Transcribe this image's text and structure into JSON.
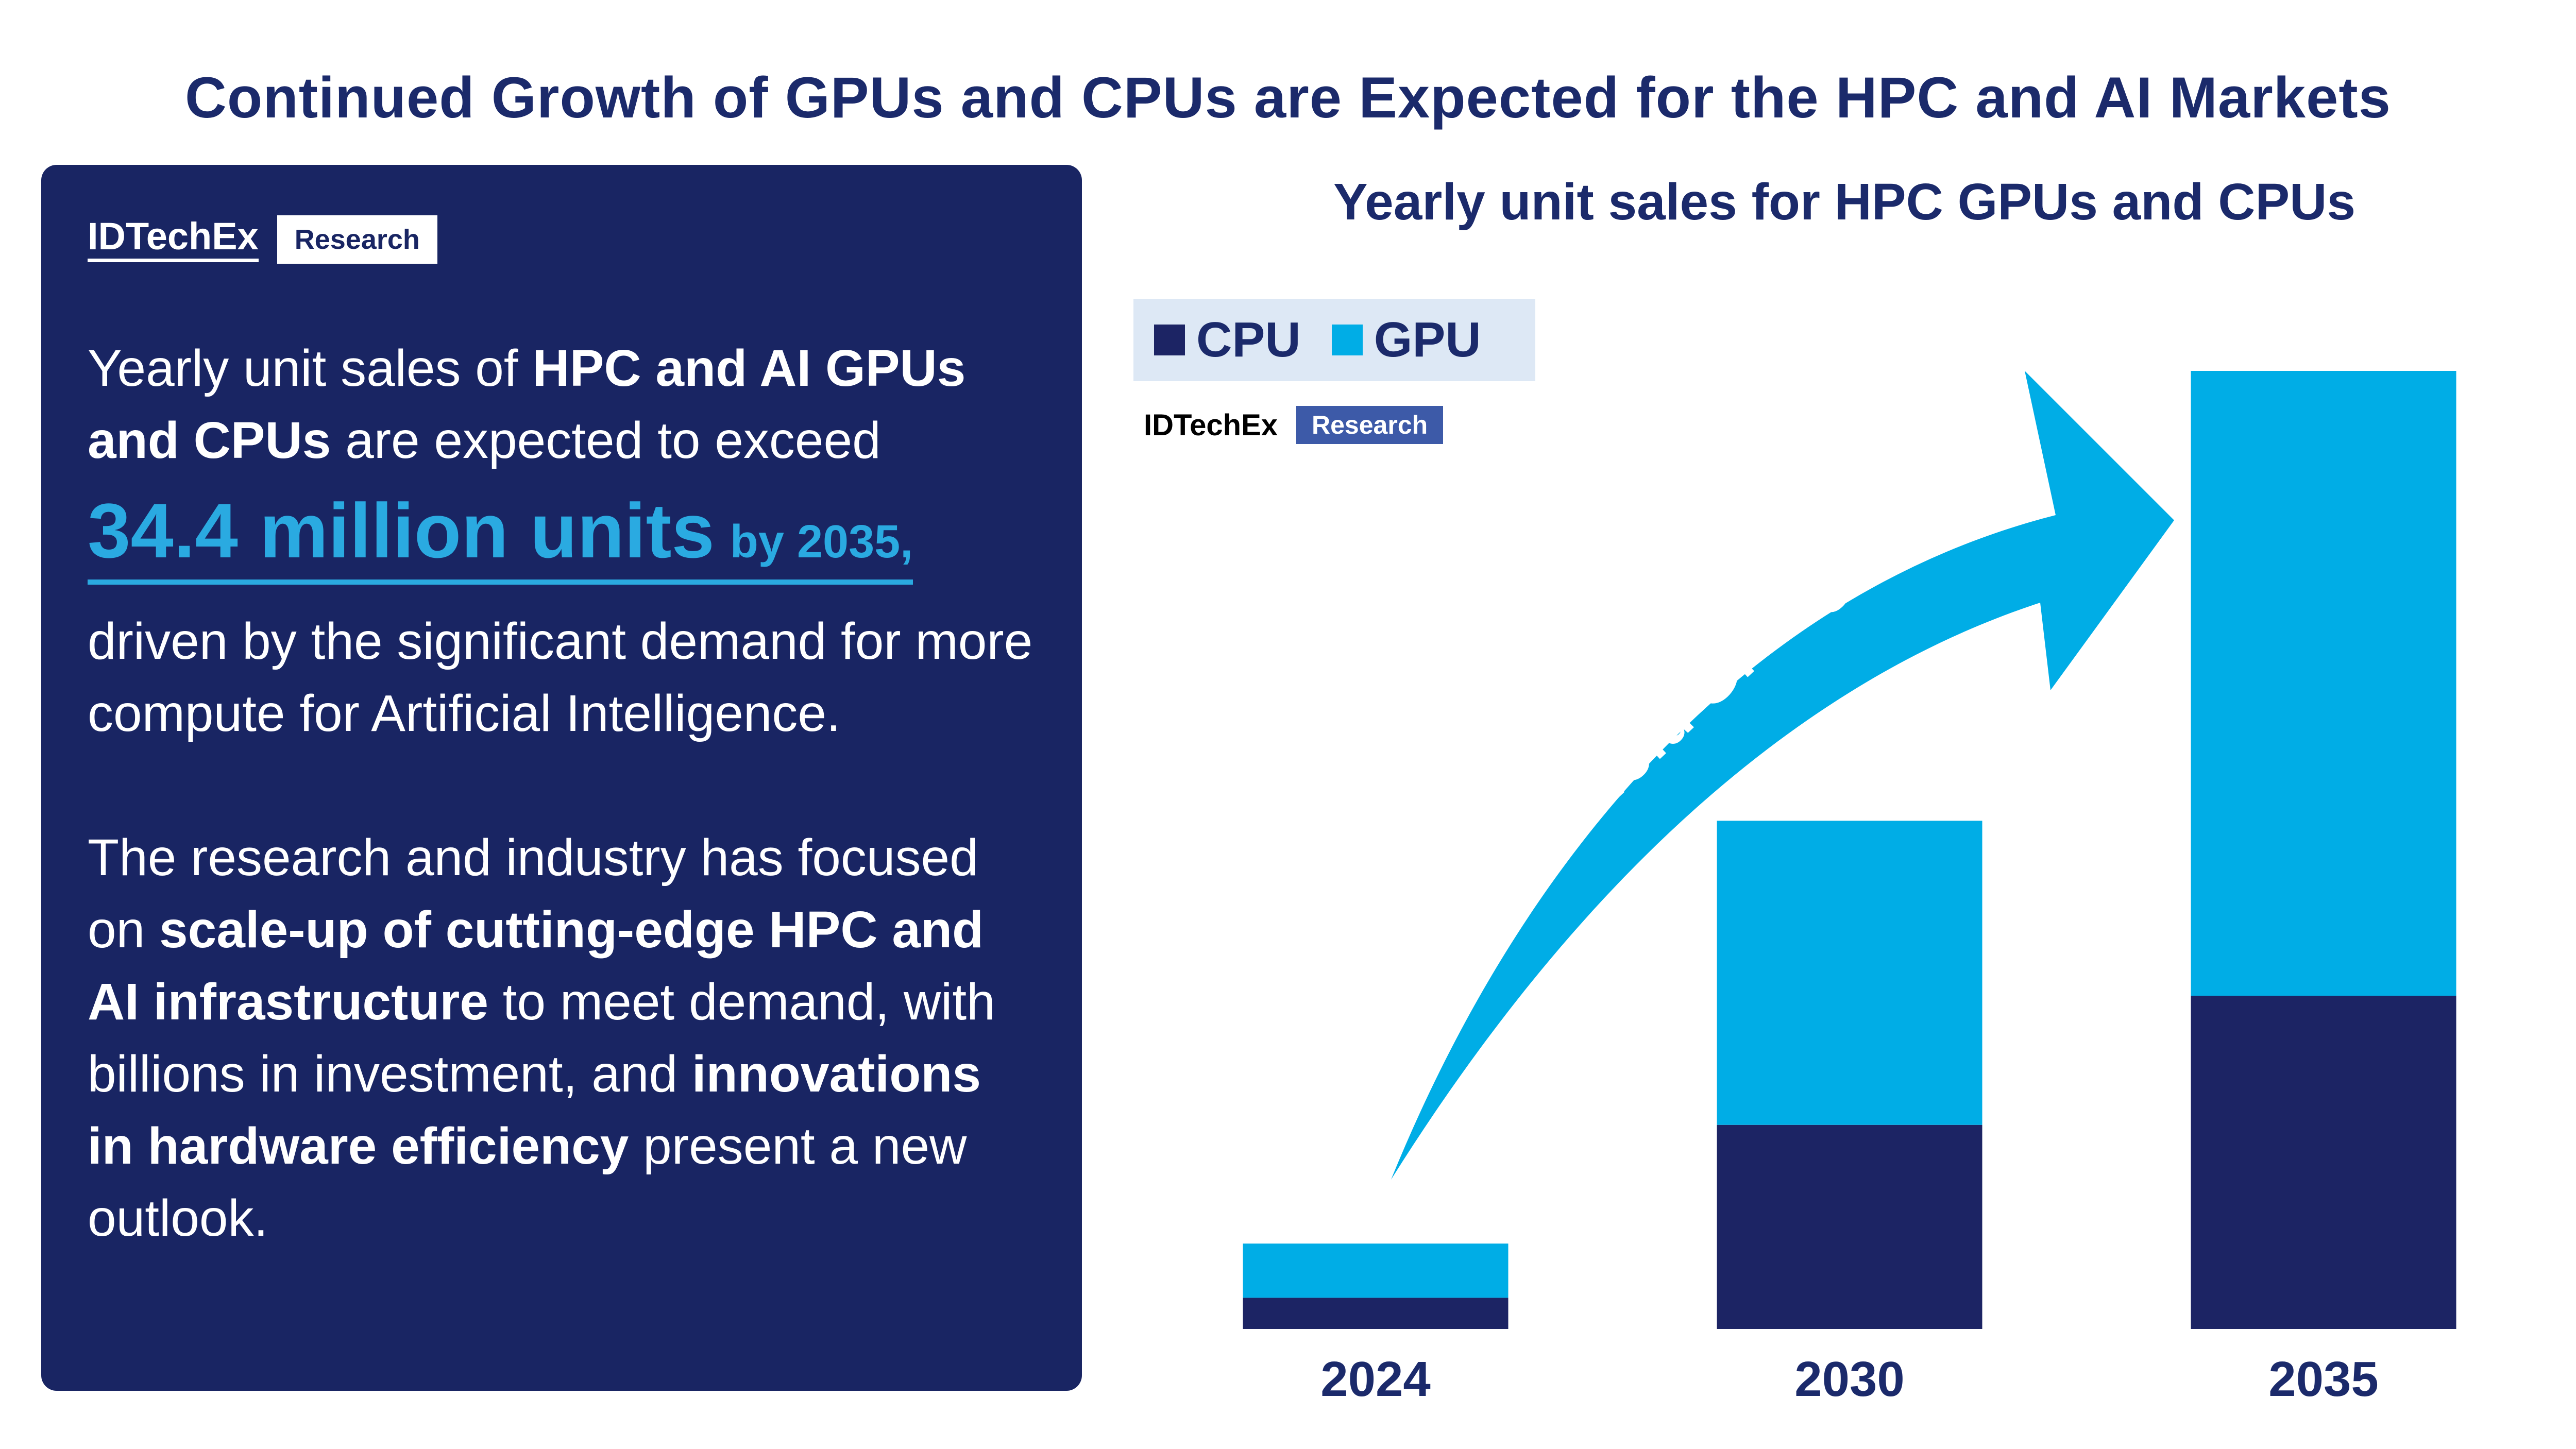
{
  "title": "Continued Growth of GPUs and CPUs are Expected for the HPC and AI Markets",
  "brand": {
    "logo": "IDTechEx",
    "tag": "Research"
  },
  "panel": {
    "intro_normal": "Yearly unit sales of ",
    "intro_bold": "HPC and AI GPUs and CPUs",
    "intro_end": " are expected to exceed",
    "highlight_big": "34.4 million units",
    "highlight_small": "by 2035,",
    "driven": "driven by the significant demand for more compute for Artificial Intelligence.",
    "para2_start": "The research and industry has focused on ",
    "para2_bold": "scale-up of cutting-edge HPC and AI infrastructure",
    "para2_mid": " to meet demand, with billions in investment, and ",
    "para2_bold2": "innovations in hardware efficiency",
    "para2_end": " present a new outlook."
  },
  "colors": {
    "panel": "#192563",
    "cpu": "#1c2464",
    "gpu": "#00ade6",
    "text": "#1b2a6b"
  },
  "chart_data": {
    "type": "bar",
    "stacked": true,
    "title": "Yearly unit sales for HPC GPUs and CPUs",
    "categories": [
      "2024",
      "2030",
      "2035"
    ],
    "series": [
      {
        "name": "CPU",
        "values": [
          1.5,
          9.8,
          16.0
        ]
      },
      {
        "name": "GPU",
        "values": [
          2.6,
          14.6,
          30.0
        ]
      }
    ],
    "ylim": [
      0,
      46
    ],
    "grid": false,
    "legend": "top-left",
    "annotation": "6-fold GPU growth"
  }
}
